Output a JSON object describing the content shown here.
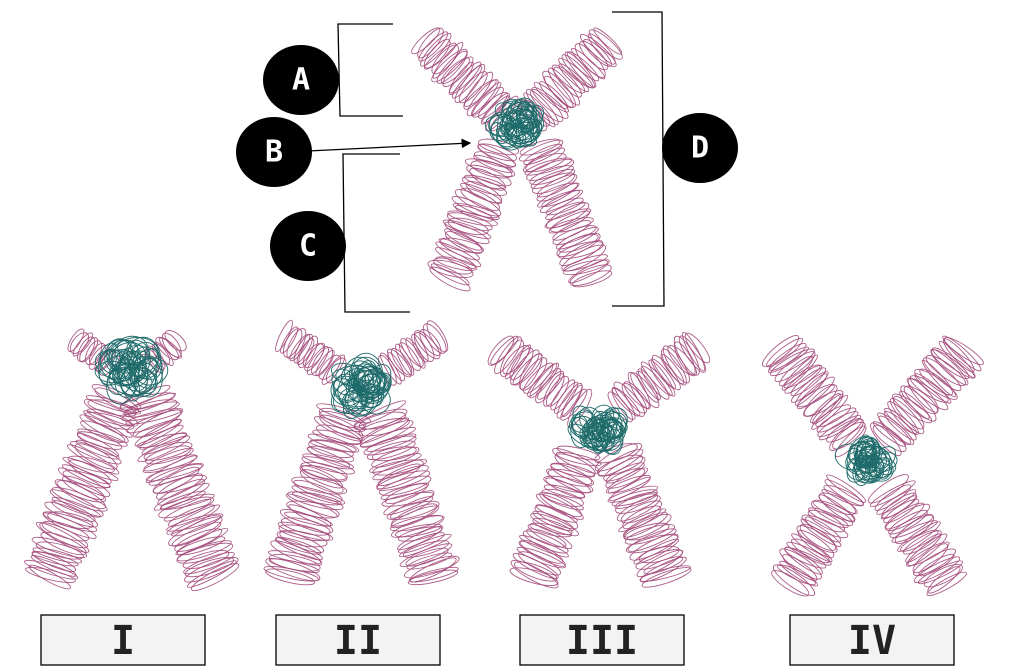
{
  "colors": {
    "arm": "#a3497a",
    "centromere": "#1f6b6b",
    "marker": "#000000",
    "box_fill": "#f3f3f3"
  },
  "markers": {
    "a": "A",
    "b": "B",
    "c": "C",
    "d": "D"
  },
  "options": {
    "i": "I",
    "ii": "II",
    "iii": "III",
    "iv": "IV"
  }
}
